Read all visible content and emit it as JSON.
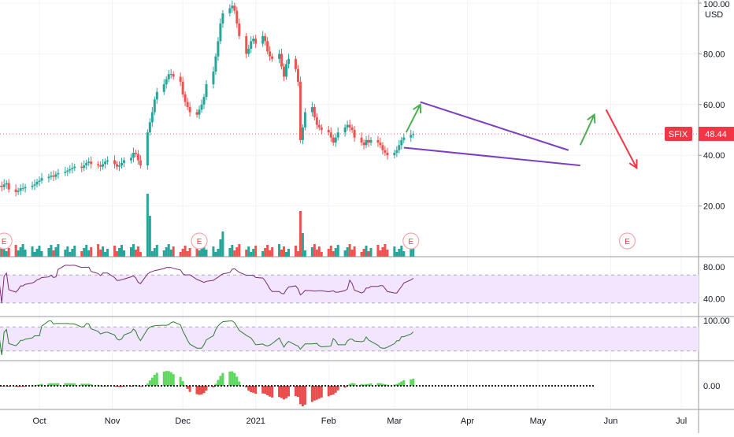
{
  "chart_data": [
    {
      "type": "candlestick",
      "ticker": "SFIX",
      "currency": "USD",
      "last_price": 48.44,
      "last_price_label": "48.44",
      "ylim": [
        0,
        100
      ],
      "price_ticks": [
        {
          "value": 100,
          "label": "100.00"
        },
        {
          "value": 80,
          "label": "80.00"
        },
        {
          "value": 60,
          "label": "60.00"
        },
        {
          "value": 40,
          "label": "40.00"
        },
        {
          "value": 20,
          "label": "20.00"
        }
      ],
      "x_ticks": [
        "Oct",
        "Nov",
        "Dec",
        "2021",
        "Feb",
        "Mar",
        "Apr",
        "May",
        "Jun",
        "Jul"
      ],
      "earnings_markers": [
        "E",
        "E",
        "E",
        "E"
      ],
      "close_series": {
        "start_date": "2020-09-14",
        "closes": [
          28,
          27.5,
          28.5,
          29,
          26.5,
          25.5,
          26,
          27,
          27,
          27.5,
          28,
          28.5,
          29.5,
          30,
          31,
          31.5,
          32,
          31.5,
          32.5,
          33,
          33.5,
          34,
          34.5,
          35,
          35.5,
          35,
          36,
          37,
          37.5,
          36.5,
          36,
          35.5,
          36.5,
          37.5,
          38,
          36.5,
          35.5,
          36,
          37,
          38,
          39,
          41,
          40.5,
          38,
          36,
          49,
          53,
          57,
          62,
          65,
          68,
          70,
          72,
          72,
          71,
          69,
          64,
          61,
          59,
          57,
          56,
          58,
          60,
          63,
          68,
          73,
          79,
          85,
          92,
          96,
          98,
          99,
          97,
          92,
          87,
          80,
          82,
          85,
          86,
          84,
          87,
          85,
          81,
          79,
          78,
          80,
          75,
          71,
          76,
          78,
          74,
          69,
          46,
          51,
          57,
          59,
          55,
          52,
          51,
          50,
          49,
          47,
          45,
          47,
          49,
          51,
          52,
          51,
          50,
          47,
          45,
          44,
          46,
          45,
          46,
          45,
          44,
          42,
          41,
          40,
          41,
          42,
          44,
          46,
          47,
          48,
          48.4
        ]
      },
      "trendlines": {
        "upper": [
          {
            "date": "2021-03-12",
            "price": 61
          },
          {
            "date": "2021-05-14",
            "price": 42
          }
        ],
        "lower": [
          {
            "date": "2021-03-05",
            "price": 43
          },
          {
            "date": "2021-05-19",
            "price": 36
          }
        ]
      },
      "annotation_arrows": [
        {
          "from": {
            "date": "2021-03-06",
            "price": 49
          },
          "to": {
            "date": "2021-03-12",
            "price": 60
          },
          "color": "#4caf50"
        },
        {
          "from": {
            "date": "2021-05-19",
            "price": 44
          },
          "to": {
            "date": "2021-05-25",
            "price": 56
          },
          "color": "#4caf50"
        },
        {
          "from": {
            "date": "2021-05-30",
            "price": 58
          },
          "to": {
            "date": "2021-06-12",
            "price": 35
          },
          "color": "#f23645"
        }
      ]
    },
    {
      "type": "line",
      "indicator": "RSI-like oscillator (panel 2)",
      "ticks": [
        {
          "value": 80,
          "label": "80.00"
        },
        {
          "value": 40,
          "label": "40.00"
        }
      ],
      "band": [
        35,
        70
      ],
      "ylim": [
        20,
        90
      ]
    },
    {
      "type": "line",
      "indicator": "Oscillator (panel 3)",
      "ticks": [
        {
          "value": 100,
          "label": "100.00"
        }
      ],
      "band": [
        20,
        80
      ],
      "ylim": [
        0,
        100
      ]
    },
    {
      "type": "bar",
      "indicator": "Histogram (panel 4)",
      "ticks": [
        {
          "value": 0,
          "label": "0.00"
        }
      ],
      "ylim": [
        -1,
        1
      ]
    }
  ],
  "colors": {
    "up": "#26a69a",
    "down": "#ef5350",
    "wedge": "#7b3fbf",
    "arrow_green": "#4caf50",
    "arrow_red": "#f23645",
    "price_tag": "#f23645",
    "band_fill": "#f2e6ff",
    "osc_purple": "#7a2a73",
    "osc_green": "#2e7d32",
    "hist_pos": "#5ed75e",
    "hist_neg": "#e84c4c"
  }
}
